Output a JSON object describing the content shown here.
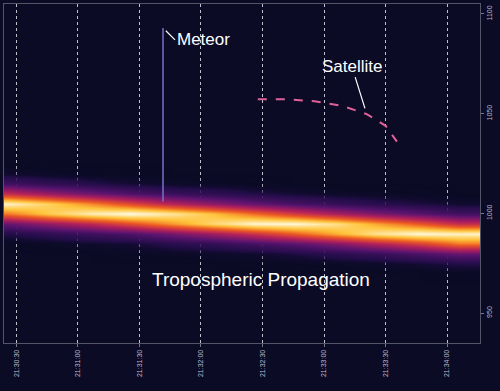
{
  "chart_data": {
    "type": "heatmap",
    "x": [
      77426,
      77446,
      77466,
      77486,
      77506,
      77526,
      77546,
      77566,
      77586,
      77606,
      77626,
      77646
    ],
    "y": [
      965,
      970,
      975,
      980,
      985,
      990,
      995,
      1000,
      1005,
      1010,
      1015,
      1020,
      1025,
      1030
    ],
    "z": [
      [
        0,
        0,
        0,
        0,
        0,
        0,
        0,
        0,
        0,
        0,
        0,
        0
      ],
      [
        0,
        0,
        0,
        0,
        0,
        0,
        0,
        0,
        0,
        0,
        0,
        1
      ],
      [
        0,
        0,
        0,
        0,
        0,
        0,
        1,
        1,
        2,
        3,
        5,
        8
      ],
      [
        0,
        0,
        0,
        1,
        2,
        3,
        4,
        7,
        11,
        15,
        21,
        28
      ],
      [
        1,
        2,
        4,
        5,
        10,
        13,
        19,
        25,
        34,
        45,
        56,
        70
      ],
      [
        8,
        12,
        17,
        22,
        31,
        41,
        52,
        65,
        79,
        92,
        99,
        97
      ],
      [
        28,
        38,
        48,
        61,
        75,
        88,
        98,
        99,
        91,
        77,
        64,
        50
      ],
      [
        70,
        84,
        95,
        100,
        93,
        82,
        68,
        55,
        43,
        33,
        25,
        18
      ],
      [
        97,
        86,
        73,
        59,
        46,
        36,
        27,
        20,
        14,
        10,
        7,
        4
      ],
      [
        50,
        39,
        30,
        22,
        16,
        12,
        8,
        5,
        3,
        2,
        1,
        0
      ],
      [
        18,
        13,
        9,
        5,
        3,
        2,
        1,
        0,
        0,
        0,
        0,
        0
      ],
      [
        4,
        2,
        1,
        1,
        0,
        0,
        0,
        0,
        0,
        0,
        0,
        0
      ],
      [
        0,
        0,
        0,
        0,
        0,
        0,
        0,
        0,
        0,
        0,
        0,
        0
      ],
      [
        0,
        0,
        0,
        0,
        0,
        0,
        0,
        0,
        0,
        0,
        0,
        0
      ]
    ],
    "zlim": [
      0,
      100
    ],
    "xlim": [
      77424,
      77656
    ],
    "ylim": [
      935,
      1105
    ],
    "xticks": [
      {
        "value": 77430,
        "label": "21:30:30"
      },
      {
        "value": 77460,
        "label": "21:31:00"
      },
      {
        "value": 77490,
        "label": "21:31:30"
      },
      {
        "value": 77520,
        "label": "21:32:00"
      },
      {
        "value": 77550,
        "label": "21:32:30"
      },
      {
        "value": 77580,
        "label": "21:33:00"
      },
      {
        "value": 77610,
        "label": "21:33:30"
      },
      {
        "value": 77640,
        "label": "21:34:00"
      }
    ],
    "yticks": [
      950,
      1000,
      1050,
      1100
    ],
    "grid": "x",
    "series": [
      {
        "name": "Meteor",
        "type": "line",
        "color": "#7a70c8",
        "line_style": "solid",
        "x": [
          77501.5,
          77501.5
        ],
        "values": [
          1093,
          1006
        ]
      },
      {
        "name": "Satellite",
        "type": "line",
        "color": "#e0609a",
        "line_style": "dash",
        "x": [
          77547.7,
          77561.5,
          77575.4,
          77589.2,
          77600.8,
          77610,
          77615.5
        ],
        "values": [
          1057.2,
          1057.2,
          1056.2,
          1053.8,
          1049.8,
          1043.9,
          1036.0
        ]
      }
    ],
    "annotations": [
      {
        "text": "Tropospheric Propagation"
      }
    ]
  }
}
